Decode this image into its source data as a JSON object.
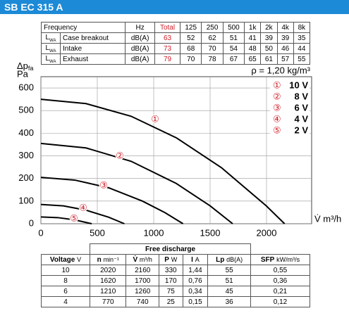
{
  "header": {
    "title": "SB EC 315 A"
  },
  "sound_table": {
    "headers": [
      "Frequency",
      "Hz",
      "Total",
      "125",
      "250",
      "500",
      "1k",
      "2k",
      "4k",
      "8k"
    ],
    "level_symbol": "L",
    "level_sub": "WA",
    "rows": [
      [
        "Case breakout",
        "dB(A)",
        "63",
        "52",
        "62",
        "51",
        "41",
        "39",
        "39",
        "35"
      ],
      [
        "Intake",
        "dB(A)",
        "73",
        "68",
        "70",
        "54",
        "48",
        "50",
        "46",
        "44"
      ],
      [
        "Exhaust",
        "dB(A)",
        "79",
        "70",
        "78",
        "67",
        "65",
        "61",
        "57",
        "55"
      ]
    ]
  },
  "chart_data": {
    "type": "line",
    "y_label": "Δp",
    "y_label_sub": "fa",
    "y_unit": "Pa",
    "x_label": "V̇ m³/h",
    "annotation": "ρ = 1,20 kg/m³",
    "xlim": [
      0,
      2400
    ],
    "ylim": [
      0,
      650
    ],
    "xticks": [
      0,
      500,
      1000,
      1500,
      2000
    ],
    "yticks": [
      0,
      100,
      200,
      300,
      400,
      500,
      600
    ],
    "grid": true,
    "series": [
      {
        "name": "10 V",
        "marker": "①",
        "color": "#000000",
        "x": [
          0,
          400,
          800,
          1200,
          1600,
          2000,
          2160
        ],
        "values": [
          550,
          531,
          475,
          380,
          248,
          78,
          0
        ]
      },
      {
        "name": "8 V",
        "marker": "②",
        "color": "#000000",
        "x": [
          0,
          400,
          800,
          1200,
          1500,
          1700
        ],
        "values": [
          355,
          335,
          276,
          178,
          79,
          0
        ]
      },
      {
        "name": "6 V",
        "marker": "③",
        "color": "#000000",
        "x": [
          0,
          300,
          600,
          900,
          1100,
          1260
        ],
        "values": [
          205,
          193,
          159,
          100,
          49,
          0
        ]
      },
      {
        "name": "4 V",
        "marker": "④",
        "color": "#000000",
        "x": [
          0,
          200,
          400,
          600,
          740
        ],
        "values": [
          85,
          79,
          60,
          29,
          0
        ]
      },
      {
        "name": "2 V",
        "marker": "⑤",
        "color": "#000000",
        "x": [
          0,
          150,
          300,
          450
        ],
        "values": [
          30,
          27,
          17,
          0
        ]
      }
    ]
  },
  "perf_table": {
    "group_header": "Free discharge",
    "headers": [
      [
        "Voltage",
        "V"
      ],
      [
        "n",
        "min⁻¹"
      ],
      [
        "V̇",
        "m³/h"
      ],
      [
        "P",
        "W"
      ],
      [
        "I",
        "A"
      ],
      [
        "Lp",
        "dB(A)"
      ],
      [
        "SFP",
        "kW/m³/s"
      ]
    ],
    "rows": [
      [
        "10",
        "2020",
        "2160",
        "330",
        "1,44",
        "55",
        "0,55"
      ],
      [
        "8",
        "1620",
        "1700",
        "170",
        "0,76",
        "51",
        "0,36"
      ],
      [
        "6",
        "1210",
        "1260",
        "75",
        "0,34",
        "45",
        "0,21"
      ],
      [
        "4",
        "770",
        "740",
        "25",
        "0,15",
        "36",
        "0,12"
      ]
    ]
  }
}
